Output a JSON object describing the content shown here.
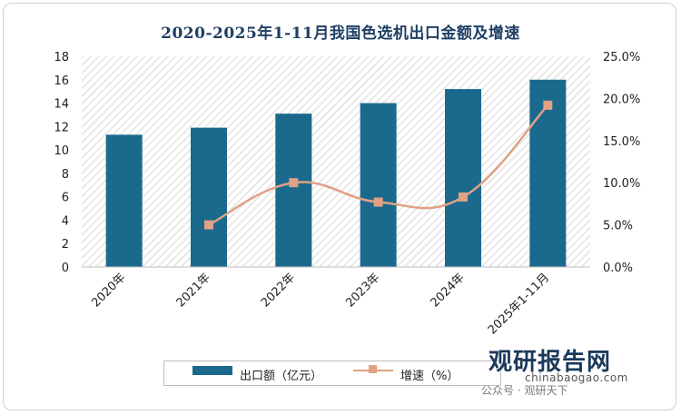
{
  "chart_data": {
    "type": "bar",
    "title": "2020-2025年1-11月我国色选机出口金额及增速",
    "categories": [
      "2020年",
      "2021年",
      "2022年",
      "2023年",
      "2024年",
      "2025年1-11月"
    ],
    "series": [
      {
        "name": "出口额（亿元）",
        "type": "bar",
        "axis": "left",
        "values": [
          11.3,
          11.9,
          13.1,
          14.0,
          15.2,
          16.0
        ]
      },
      {
        "name": "增速（%）",
        "type": "line",
        "axis": "right",
        "values": [
          null,
          5.0,
          10.0,
          7.7,
          8.3,
          19.2
        ]
      }
    ],
    "y_left": {
      "min": 0,
      "max": 18,
      "ticks": [
        "0",
        "2",
        "4",
        "6",
        "8",
        "10",
        "12",
        "14",
        "16",
        "18"
      ]
    },
    "y_right": {
      "min": 0,
      "max": 25,
      "ticks": [
        "0.0%",
        "5.0%",
        "10.0%",
        "15.0%",
        "20.0%",
        "25.0%"
      ]
    },
    "legend_position": "bottom",
    "colors": {
      "bar": "#1b6a8d",
      "line": "#e0a184"
    }
  },
  "watermark": {
    "brand": "观研报告网",
    "url": "chinabaogao.com",
    "wechat": "公众号 · 观研天下"
  }
}
